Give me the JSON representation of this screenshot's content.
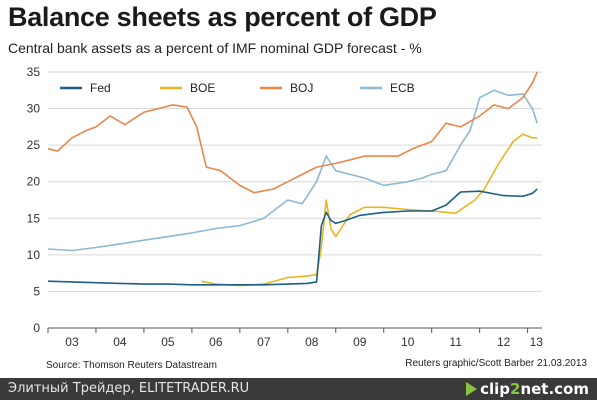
{
  "chart_data": {
    "type": "line",
    "title": "Balance sheets as percent of GDP",
    "subtitle": "Central bank assets as a percent of IMF nominal GDP forecast - %",
    "source": "Source: Thomson Reuters Datastream",
    "credit": "Reuters graphic/Scott Barber 21.03.2013",
    "x_tick_labels": [
      "03",
      "04",
      "05",
      "06",
      "07",
      "08",
      "09",
      "10",
      "11",
      "12",
      "13"
    ],
    "y_ticks": [
      0,
      5,
      10,
      15,
      20,
      25,
      30,
      35
    ],
    "ylim": [
      0,
      35
    ],
    "xlim": [
      2003.0,
      2013.3
    ],
    "grid": "horizontal",
    "legend_position": "top-left",
    "series": [
      {
        "name": "Fed",
        "color": "#1d5e8a",
        "points": [
          [
            2003.0,
            6.4
          ],
          [
            2003.5,
            6.3
          ],
          [
            2004.0,
            6.2
          ],
          [
            2004.5,
            6.1
          ],
          [
            2005.0,
            6.0
          ],
          [
            2005.5,
            6.0
          ],
          [
            2006.0,
            5.9
          ],
          [
            2006.5,
            5.9
          ],
          [
            2007.0,
            5.9
          ],
          [
            2007.5,
            5.9
          ],
          [
            2008.0,
            6.0
          ],
          [
            2008.4,
            6.1
          ],
          [
            2008.6,
            6.3
          ],
          [
            2008.7,
            14.0
          ],
          [
            2008.8,
            15.8
          ],
          [
            2008.9,
            14.7
          ],
          [
            2009.0,
            14.3
          ],
          [
            2009.2,
            14.7
          ],
          [
            2009.5,
            15.4
          ],
          [
            2010.0,
            15.8
          ],
          [
            2010.5,
            16.0
          ],
          [
            2011.0,
            16.0
          ],
          [
            2011.3,
            16.8
          ],
          [
            2011.6,
            18.6
          ],
          [
            2012.0,
            18.7
          ],
          [
            2012.5,
            18.1
          ],
          [
            2012.9,
            18.0
          ],
          [
            2013.1,
            18.4
          ],
          [
            2013.2,
            19.0
          ]
        ]
      },
      {
        "name": "BOE",
        "color": "#e8b51e",
        "points": [
          [
            2006.2,
            6.4
          ],
          [
            2006.5,
            6.0
          ],
          [
            2007.0,
            5.8
          ],
          [
            2007.5,
            6.0
          ],
          [
            2008.0,
            6.9
          ],
          [
            2008.4,
            7.1
          ],
          [
            2008.6,
            7.3
          ],
          [
            2008.7,
            11.0
          ],
          [
            2008.8,
            17.5
          ],
          [
            2008.9,
            13.5
          ],
          [
            2009.0,
            12.5
          ],
          [
            2009.3,
            15.5
          ],
          [
            2009.6,
            16.5
          ],
          [
            2010.0,
            16.5
          ],
          [
            2010.5,
            16.2
          ],
          [
            2011.0,
            16.0
          ],
          [
            2011.5,
            15.7
          ],
          [
            2011.9,
            17.5
          ],
          [
            2012.1,
            19.0
          ],
          [
            2012.4,
            22.5
          ],
          [
            2012.7,
            25.5
          ],
          [
            2012.9,
            26.5
          ],
          [
            2013.1,
            26.0
          ],
          [
            2013.2,
            26.0
          ]
        ]
      },
      {
        "name": "BOJ",
        "color": "#e9874b",
        "points": [
          [
            2003.0,
            24.5
          ],
          [
            2003.2,
            24.2
          ],
          [
            2003.5,
            26.0
          ],
          [
            2003.8,
            27.0
          ],
          [
            2004.0,
            27.5
          ],
          [
            2004.3,
            29.0
          ],
          [
            2004.6,
            27.8
          ],
          [
            2005.0,
            29.5
          ],
          [
            2005.3,
            30.0
          ],
          [
            2005.6,
            30.5
          ],
          [
            2005.9,
            30.2
          ],
          [
            2006.1,
            27.5
          ],
          [
            2006.3,
            22.0
          ],
          [
            2006.6,
            21.5
          ],
          [
            2006.8,
            20.5
          ],
          [
            2007.0,
            19.5
          ],
          [
            2007.3,
            18.5
          ],
          [
            2007.7,
            19.0
          ],
          [
            2008.0,
            20.0
          ],
          [
            2008.3,
            21.0
          ],
          [
            2008.6,
            22.0
          ],
          [
            2009.0,
            22.5
          ],
          [
            2009.3,
            23.0
          ],
          [
            2009.6,
            23.5
          ],
          [
            2010.0,
            23.5
          ],
          [
            2010.3,
            23.5
          ],
          [
            2010.6,
            24.5
          ],
          [
            2011.0,
            25.5
          ],
          [
            2011.3,
            28.0
          ],
          [
            2011.6,
            27.5
          ],
          [
            2012.0,
            29.0
          ],
          [
            2012.3,
            30.5
          ],
          [
            2012.6,
            30.0
          ],
          [
            2012.9,
            31.5
          ],
          [
            2013.1,
            33.5
          ],
          [
            2013.2,
            35.0
          ]
        ]
      },
      {
        "name": "ECB",
        "color": "#8fb9d3",
        "points": [
          [
            2003.0,
            10.8
          ],
          [
            2003.5,
            10.6
          ],
          [
            2004.0,
            11.0
          ],
          [
            2004.5,
            11.5
          ],
          [
            2005.0,
            12.0
          ],
          [
            2005.5,
            12.5
          ],
          [
            2006.0,
            13.0
          ],
          [
            2006.5,
            13.6
          ],
          [
            2007.0,
            14.0
          ],
          [
            2007.5,
            15.0
          ],
          [
            2007.8,
            16.5
          ],
          [
            2008.0,
            17.5
          ],
          [
            2008.3,
            17.0
          ],
          [
            2008.6,
            20.0
          ],
          [
            2008.8,
            23.5
          ],
          [
            2009.0,
            21.5
          ],
          [
            2009.3,
            21.0
          ],
          [
            2009.6,
            20.5
          ],
          [
            2010.0,
            19.5
          ],
          [
            2010.5,
            20.0
          ],
          [
            2010.8,
            20.5
          ],
          [
            2011.0,
            21.0
          ],
          [
            2011.3,
            21.5
          ],
          [
            2011.6,
            25.0
          ],
          [
            2011.8,
            27.0
          ],
          [
            2012.0,
            31.5
          ],
          [
            2012.3,
            32.5
          ],
          [
            2012.6,
            31.8
          ],
          [
            2012.9,
            32.0
          ],
          [
            2013.1,
            30.0
          ],
          [
            2013.2,
            28.0
          ]
        ]
      }
    ]
  },
  "footer": {
    "left_text": "Элитный Трейдер, ELITETRADER.RU",
    "logo_part1": "clip",
    "logo_part2": "2",
    "logo_part3": "net",
    "logo_part4": ".com"
  }
}
